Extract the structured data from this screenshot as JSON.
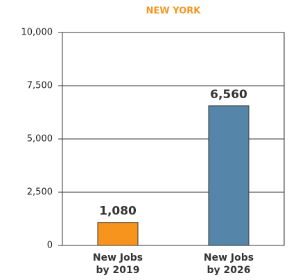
{
  "chart_data": {
    "type": "bar",
    "title": "NEW YORK",
    "categories": [
      "New Jobs by 2019",
      "New Jobs by 2026"
    ],
    "values": [
      1080,
      6560
    ],
    "value_labels": [
      "1,080",
      "6,560"
    ],
    "colors": [
      "#f7941d",
      "#5585a8"
    ],
    "ylim": [
      0,
      10000
    ],
    "yticks": [
      0,
      {
        "value": 2500,
        "label": "2,500"
      },
      {
        "value": 5000,
        "label": "5,000"
      },
      {
        "value": 7500,
        "label": "7,500"
      },
      {
        "value": 10000,
        "label": "10,000"
      }
    ],
    "grid": true
  }
}
